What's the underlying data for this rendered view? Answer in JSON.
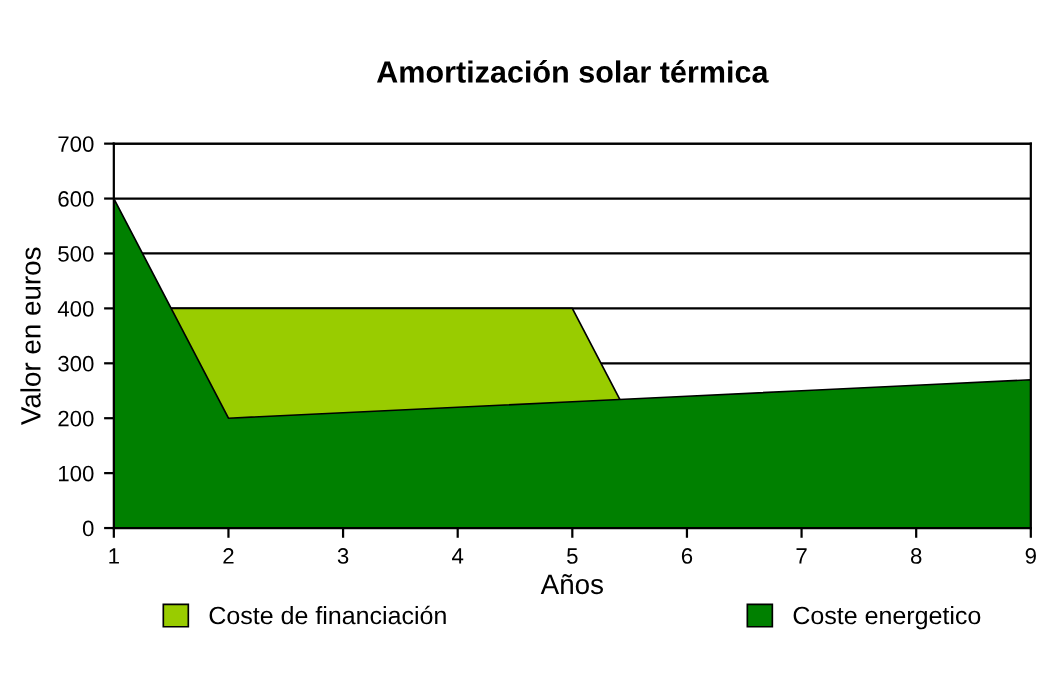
{
  "chart_data": {
    "type": "area",
    "title": "Amortización solar térmica",
    "xlabel": "Años",
    "ylabel": "Valor en euros",
    "categories": [
      "1",
      "2",
      "3",
      "4",
      "5",
      "6",
      "7",
      "8",
      "9"
    ],
    "series": [
      {
        "name": "Coste de financiación",
        "color": "#99cc00",
        "values": [
          400,
          400,
          400,
          400,
          400,
          0,
          0,
          0,
          0
        ]
      },
      {
        "name": "Coste energetico",
        "color": "#008000",
        "values": [
          600,
          200,
          210,
          220,
          230,
          240,
          250,
          260,
          270
        ]
      }
    ],
    "ylim": [
      0,
      700
    ],
    "yticks": [
      0,
      100,
      200,
      300,
      400,
      500,
      600,
      700
    ],
    "grid": "y",
    "legend": "bottom"
  }
}
